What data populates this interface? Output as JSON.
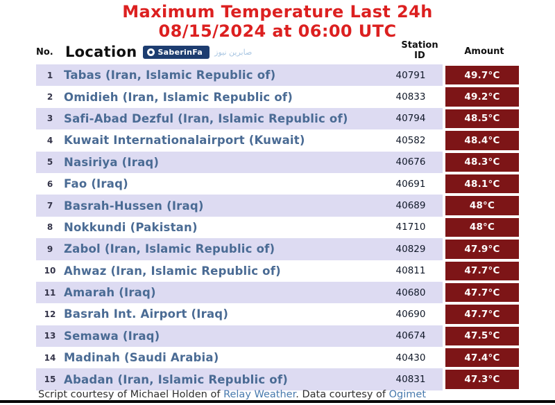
{
  "title": {
    "line1": "Maximum Temperature Last 24h",
    "line2": "08/15/2024 at 06:00 UTC"
  },
  "table_header": {
    "no": "No.",
    "location": "Location",
    "station_line1": "Station",
    "station_line2": "ID",
    "amount": "Amount"
  },
  "watermark": {
    "badge_icon": "circle-dot-icon",
    "badge_text": "SaberinFa",
    "side_text": "صابرین نیوز"
  },
  "chart_data": {
    "type": "table",
    "title": "Maximum Temperature Last 24h 08/15/2024 at 06:00 UTC",
    "columns": [
      "No.",
      "Location",
      "Station ID",
      "Amount"
    ],
    "rows": [
      [
        "1",
        "Tabas (Iran, Islamic Republic of)",
        "40791",
        "49.7°C"
      ],
      [
        "2",
        "Omidieh (Iran, Islamic Republic of)",
        "40833",
        "49.2°C"
      ],
      [
        "3",
        "Safi-Abad Dezful (Iran, Islamic Republic of)",
        "40794",
        "48.5°C"
      ],
      [
        "4",
        "Kuwait Internationalairport (Kuwait)",
        "40582",
        "48.4°C"
      ],
      [
        "5",
        "Nasiriya (Iraq)",
        "40676",
        "48.3°C"
      ],
      [
        "6",
        "Fao (Iraq)",
        "40691",
        "48.1°C"
      ],
      [
        "7",
        "Basrah-Hussen (Iraq)",
        "40689",
        "48°C"
      ],
      [
        "8",
        "Nokkundi (Pakistan)",
        "41710",
        "48°C"
      ],
      [
        "9",
        "Zabol (Iran, Islamic Republic of)",
        "40829",
        "47.9°C"
      ],
      [
        "10",
        "Ahwaz (Iran, Islamic Republic of)",
        "40811",
        "47.7°C"
      ],
      [
        "11",
        "Amarah (Iraq)",
        "40680",
        "47.7°C"
      ],
      [
        "12",
        "Basrah Int. Airport (Iraq)",
        "40690",
        "47.7°C"
      ],
      [
        "13",
        "Semawa (Iraq)",
        "40674",
        "47.5°C"
      ],
      [
        "14",
        "Madinah (Saudi Arabia)",
        "40430",
        "47.4°C"
      ],
      [
        "15",
        "Abadan (Iran, Islamic Republic of)",
        "40831",
        "47.3°C"
      ]
    ]
  },
  "footer": {
    "prefix": "Script courtesy of  Michael Holden of ",
    "link1": "Relay Weather",
    "middle": ". Data courtesy of ",
    "link2": "Ogimet"
  },
  "colors": {
    "title_red": "#dc2020",
    "row_alt_lavender": "#dddbf2",
    "amount_maroon": "#7d1517",
    "location_blue": "#4a6b94",
    "link_blue": "#4779ad",
    "badge_navy": "#1d3d70"
  }
}
